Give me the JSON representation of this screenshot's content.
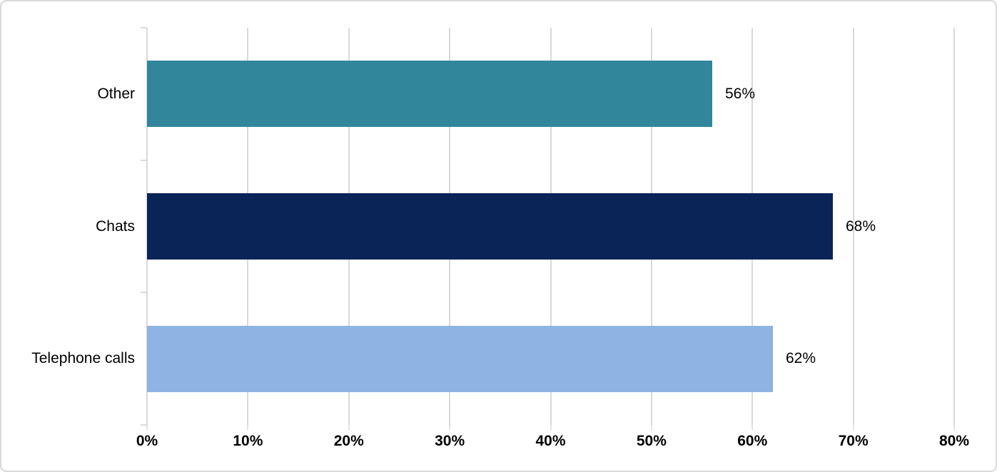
{
  "chart_data": {
    "type": "bar",
    "orientation": "horizontal",
    "title": "",
    "xlabel": "",
    "ylabel": "",
    "categories": [
      "Other",
      "Chats",
      "Telephone calls"
    ],
    "values": [
      56,
      68,
      62
    ],
    "value_labels": [
      "56%",
      "68%",
      "62%"
    ],
    "bar_colors": [
      "#31869B",
      "#0A2458",
      "#8DB4E2"
    ],
    "x_ticks": [
      "0%",
      "10%",
      "20%",
      "30%",
      "40%",
      "50%",
      "60%",
      "70%",
      "80%"
    ],
    "x_tick_values": [
      0,
      10,
      20,
      30,
      40,
      50,
      60,
      70,
      80
    ],
    "xlim": [
      0,
      80
    ],
    "grid": "vertical",
    "gridline_color": "#D9D9D9",
    "legend": "none",
    "background_color": "#FFFFFF",
    "border_color": "#D9D9D9"
  }
}
